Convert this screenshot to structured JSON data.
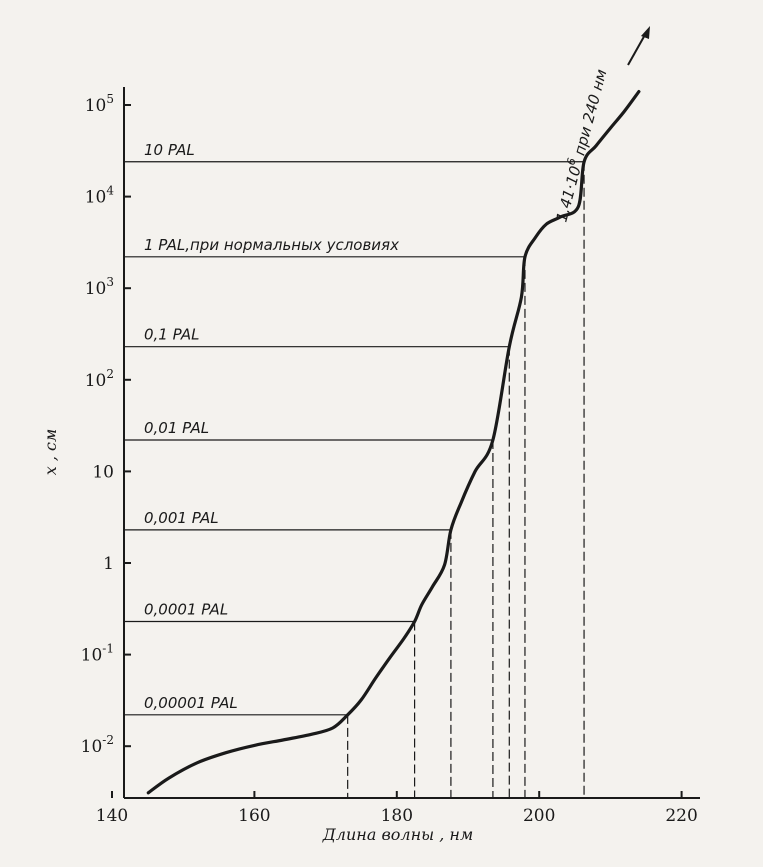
{
  "chart_data": {
    "type": "line",
    "xlabel": "Длина волны , нм",
    "ylabel": "x , см",
    "xlim": [
      140,
      222
    ],
    "ylim_log10": [
      -2.55,
      5.25
    ],
    "yscale": "log",
    "grid": false,
    "x_ticks": [
      {
        "value": 140,
        "label": "140"
      },
      {
        "value": 160,
        "label": "160"
      },
      {
        "value": 180,
        "label": "180"
      },
      {
        "value": 200,
        "label": "200"
      },
      {
        "value": 220,
        "label": "220"
      }
    ],
    "y_ticks": [
      {
        "log": 5,
        "base": "10",
        "exp": "5"
      },
      {
        "log": 4,
        "base": "10",
        "exp": "4"
      },
      {
        "log": 3,
        "base": "10",
        "exp": "3"
      },
      {
        "log": 2,
        "base": "10",
        "exp": "2"
      },
      {
        "log": 1,
        "base": "10",
        "exp": ""
      },
      {
        "log": 0,
        "base": "1",
        "exp": ""
      },
      {
        "log": -1,
        "base": "10",
        "exp": "-1"
      },
      {
        "log": -2,
        "base": "10",
        "exp": "-2"
      }
    ],
    "levels": [
      {
        "label": "10 PAL",
        "y": 24000,
        "x": 206.3
      },
      {
        "label": "1 PAL,при нормальных условиях",
        "y": 2200,
        "x": 198.0
      },
      {
        "label": "0,1 PAL",
        "y": 230,
        "x": 195.8
      },
      {
        "label": "0,01 PAL",
        "y": 22,
        "x": 193.5
      },
      {
        "label": "0,001 PAL",
        "y": 2.3,
        "x": 187.6
      },
      {
        "label": "0,0001 PAL",
        "y": 0.23,
        "x": 182.5
      },
      {
        "label": "0,00001 PAL",
        "y": 0.022,
        "x": 173.1
      }
    ],
    "series": [
      {
        "x": [
          145.1,
          148.0,
          152.0,
          156.0,
          160.0,
          164.0,
          168.0,
          171.0,
          173.1,
          175.0,
          177.0,
          179.0,
          181.0,
          182.5,
          183.5,
          185.0,
          186.7,
          187.6,
          189.0,
          191.0,
          193.5,
          195.8,
          197.5,
          198.0,
          199.5,
          201.0,
          203.0,
          205.5,
          206.3,
          208.0,
          210.0,
          212.0,
          214.0
        ],
        "y": [
          0.0031,
          0.0045,
          0.0066,
          0.0085,
          0.0102,
          0.0117,
          0.0135,
          0.0158,
          0.022,
          0.032,
          0.055,
          0.092,
          0.15,
          0.23,
          0.35,
          0.55,
          0.95,
          2.3,
          4.5,
          10.0,
          22,
          230,
          800,
          2200,
          3600,
          5000,
          6000,
          7800,
          24000,
          36000,
          56000,
          86000,
          140000
        ]
      }
    ],
    "annotation": {
      "text": "1,41·10",
      "sup": "6",
      "suffix": " при 240 нм"
    }
  }
}
